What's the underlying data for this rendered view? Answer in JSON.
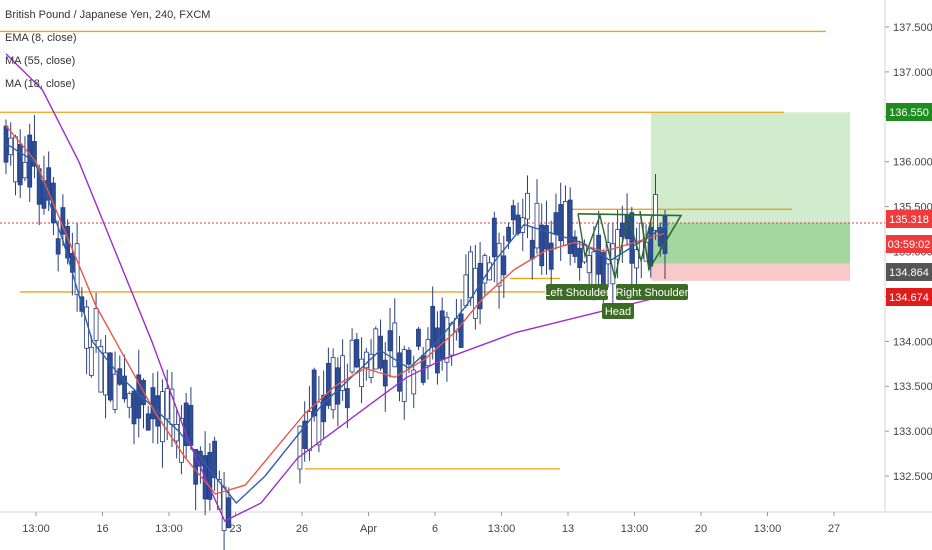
{
  "legend": {
    "title": "British Pound / Japanese Yen, 240, FXCM",
    "indicators": [
      "EMA (8, close)",
      "MA (55, close)",
      "MA (18, close)"
    ]
  },
  "chart_data": {
    "type": "line",
    "title": "British Pound / Japanese Yen, 240, FXCM",
    "xlabel": "",
    "ylabel": "",
    "ylim": [
      132.1,
      137.8
    ],
    "y_ticks": [
      "137.500",
      "137.000",
      "136.500",
      "136.000",
      "135.500",
      "135.000",
      "134.500",
      "134.000",
      "133.500",
      "133.000",
      "132.500"
    ],
    "x_ticks": [
      "13:00",
      "16",
      "13:00",
      "23",
      "26",
      "Apr",
      "6",
      "13:00",
      "13",
      "13:00",
      "20",
      "13:00",
      "27"
    ],
    "horizontal_levels": [
      137.45,
      136.55,
      134.55,
      132.58
    ],
    "current_price": 135.318,
    "countdown": "03:59:02",
    "price_tags": [
      {
        "text": "136.550",
        "value": 136.55,
        "color": "#1e8c1e"
      },
      {
        "text": "135.318",
        "value": 135.318,
        "color": "#ef3b3b"
      },
      {
        "text": "03:59:02",
        "value": 135.08,
        "color": "#ef3b3b"
      },
      {
        "text": "134.864",
        "value": 134.864,
        "color": "#555555"
      },
      {
        "text": "134.674",
        "value": 134.674,
        "color": "#e21b1b"
      }
    ],
    "position": {
      "entry": 134.864,
      "target": 136.55,
      "stop": 134.674
    },
    "pattern_labels": [
      {
        "text": "Left Shoulder"
      },
      {
        "text": "Head"
      },
      {
        "text": "Right Shoulder"
      }
    ],
    "series": [
      {
        "name": "EMA (8, close)",
        "color": "#2e5fa8",
        "values": [
          136.2,
          136.0,
          135.1,
          134.0,
          133.6,
          133.3,
          133.0,
          132.6,
          132.2,
          132.5,
          132.9,
          133.3,
          133.6,
          133.9,
          133.7,
          134.0,
          134.4,
          134.9,
          135.3,
          135.2,
          135.1,
          134.9,
          135.1,
          135.3
        ]
      },
      {
        "name": "MA (55, close)",
        "color": "#9b2fc9",
        "values": [
          137.2,
          136.8,
          136.0,
          135.0,
          134.0,
          132.9,
          132.0,
          132.2,
          132.7,
          133.0,
          133.3,
          133.6,
          133.8,
          133.95,
          134.1,
          134.2,
          134.3,
          134.4,
          134.5
        ]
      },
      {
        "name": "MA (18, close)",
        "color": "#e8584a",
        "values": [
          136.4,
          136.0,
          135.2,
          134.4,
          133.8,
          133.2,
          132.7,
          132.3,
          132.4,
          132.8,
          133.2,
          133.5,
          133.7,
          133.6,
          133.8,
          134.1,
          134.5,
          134.8,
          135.0,
          135.1,
          135.0,
          135.1,
          135.2
        ]
      }
    ]
  }
}
